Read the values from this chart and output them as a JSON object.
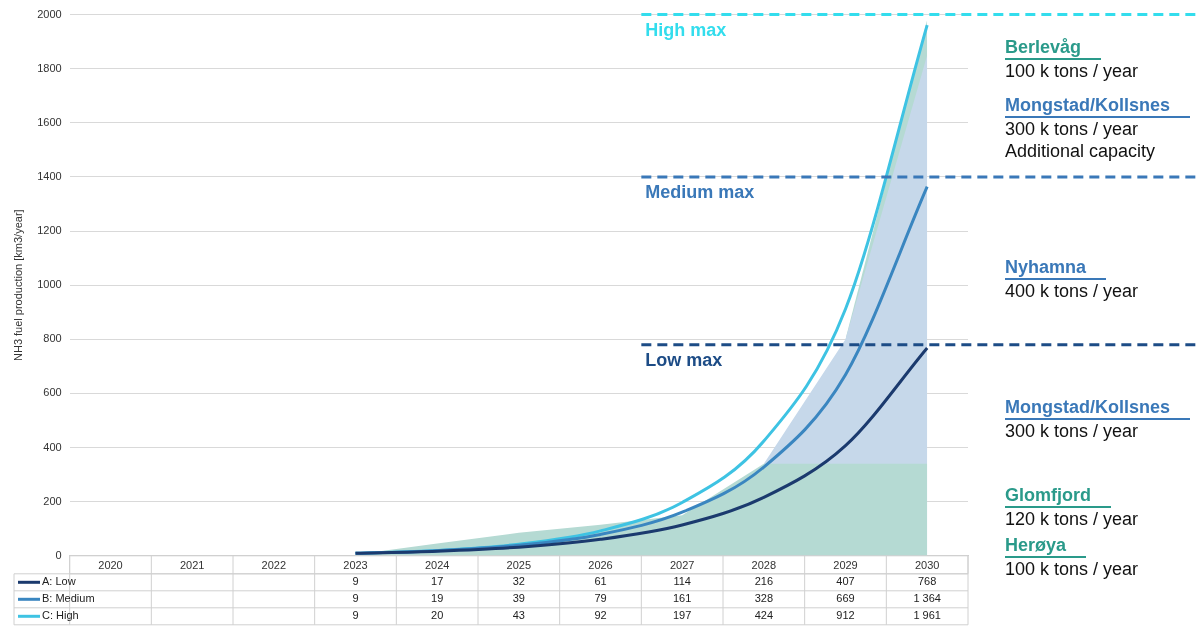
{
  "chart_data": {
    "type": "line",
    "ylabel": "NH3 fuel production [km3/year]",
    "categories": [
      "2020",
      "2021",
      "2022",
      "2023",
      "2024",
      "2025",
      "2026",
      "2027",
      "2028",
      "2029",
      "2030"
    ],
    "ylim": [
      0,
      2000
    ],
    "yticks": [
      0,
      200,
      400,
      600,
      800,
      1000,
      1200,
      1400,
      1600,
      1800,
      2000
    ],
    "grid": "y",
    "legend": "bottom",
    "series": [
      {
        "type": "area",
        "color": "#b5dad3",
        "values": [
          null,
          null,
          null,
          null,
          null,
          null,
          null,
          null,
          null,
          800,
          1980
        ]
      },
      {
        "type": "area",
        "color": "#c6d8ea",
        "values": [
          null,
          null,
          null,
          null,
          null,
          null,
          null,
          null,
          340,
          800,
          1850
        ]
      },
      {
        "type": "area",
        "color": "#b5dad3",
        "values": [
          null,
          null,
          null,
          5,
          45,
          85,
          115,
          150,
          340,
          340,
          340
        ]
      },
      {
        "name": "A: Low",
        "color": "#1b3a6e",
        "values": [
          null,
          null,
          null,
          9,
          17,
          32,
          61,
          114,
          216,
          407,
          768
        ],
        "value_labels": [
          null,
          null,
          null,
          "9",
          "17",
          "32",
          "61",
          "114",
          "216",
          "407",
          "768"
        ]
      },
      {
        "name": "B: Medium",
        "color": "#3a86c0",
        "values": [
          null,
          null,
          null,
          9,
          19,
          39,
          79,
          161,
          328,
          669,
          1364
        ],
        "value_labels": [
          null,
          null,
          null,
          "9",
          "19",
          "39",
          "79",
          "161",
          "328",
          "669",
          "1 364"
        ]
      },
      {
        "name": "C: High",
        "color": "#3ec3e3",
        "values": [
          null,
          null,
          null,
          9,
          20,
          43,
          92,
          197,
          424,
          912,
          1961
        ],
        "value_labels": [
          null,
          null,
          null,
          "9",
          "20",
          "43",
          "92",
          "197",
          "424",
          "912",
          "1 961"
        ]
      }
    ],
    "ref_lines": [
      {
        "axis": "y",
        "value": 2000,
        "label": "High max",
        "color": "#33dded",
        "line_style": "dashed"
      },
      {
        "axis": "y",
        "value": 1400,
        "label": "Medium max",
        "color": "#3a78b8",
        "line_style": "dashed"
      },
      {
        "axis": "y",
        "value": 780,
        "label": "Low max",
        "color": "#1d4c86",
        "line_style": "dashed"
      }
    ],
    "annotations": [
      "Berlevåg\n100 k tons / year",
      "Mongstad/Kollsnes\n300 k tons / year\nAdditional capacity",
      "Nyhamna\n400 k tons / year",
      "Mongstad/Kollsnes\n300 k tons / year",
      "Glomfjord\n120 k tons / year",
      "Herøya\n100 k tons / year"
    ]
  }
}
